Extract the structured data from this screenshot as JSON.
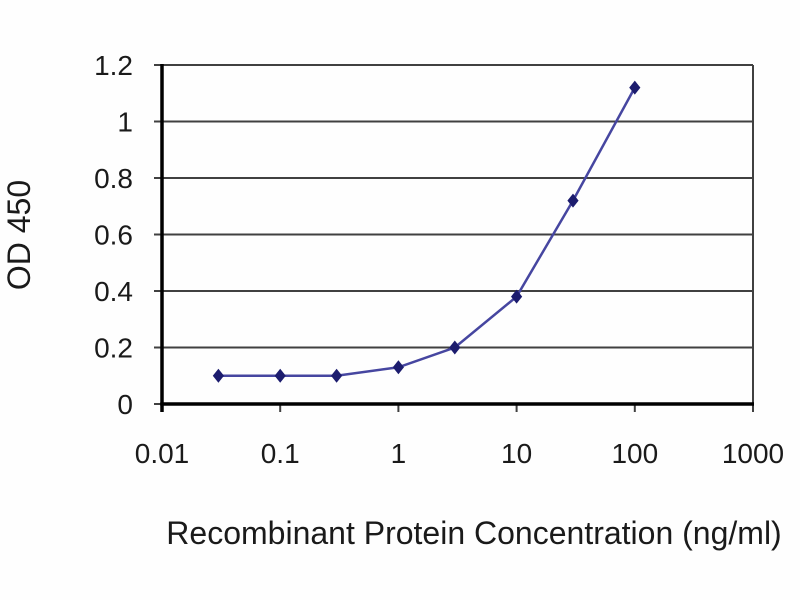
{
  "chart_data": {
    "type": "line",
    "x": [
      0.03,
      0.1,
      0.3,
      1,
      3,
      10,
      30,
      100
    ],
    "series": [
      {
        "name": "OD 450",
        "values": [
          0.1,
          0.1,
          0.1,
          0.13,
          0.2,
          0.38,
          0.72,
          1.12
        ]
      }
    ],
    "title": "",
    "xlabel": "Recombinant Protein Concentration (ng/ml)",
    "ylabel": "OD 450",
    "x_scale": "log",
    "xlim": [
      0.01,
      1000
    ],
    "ylim": [
      0,
      1.2
    ],
    "x_ticks": [
      0.01,
      0.1,
      1,
      10,
      100,
      1000
    ],
    "x_tick_labels": [
      "0.01",
      "0.1",
      "1",
      "10",
      "100",
      "1000"
    ],
    "y_ticks": [
      0,
      0.2,
      0.4,
      0.6,
      0.8,
      1,
      1.2
    ],
    "y_tick_labels": [
      "0",
      "0.2",
      "0.4",
      "0.6",
      "0.8",
      "1",
      "1.2"
    ],
    "grid": "horizontal",
    "legend": "none",
    "line_color": "#4646a0",
    "marker_color": "#1c1c6e",
    "marker": "diamond",
    "axis_color": "#000000",
    "grid_color": "#404040"
  }
}
